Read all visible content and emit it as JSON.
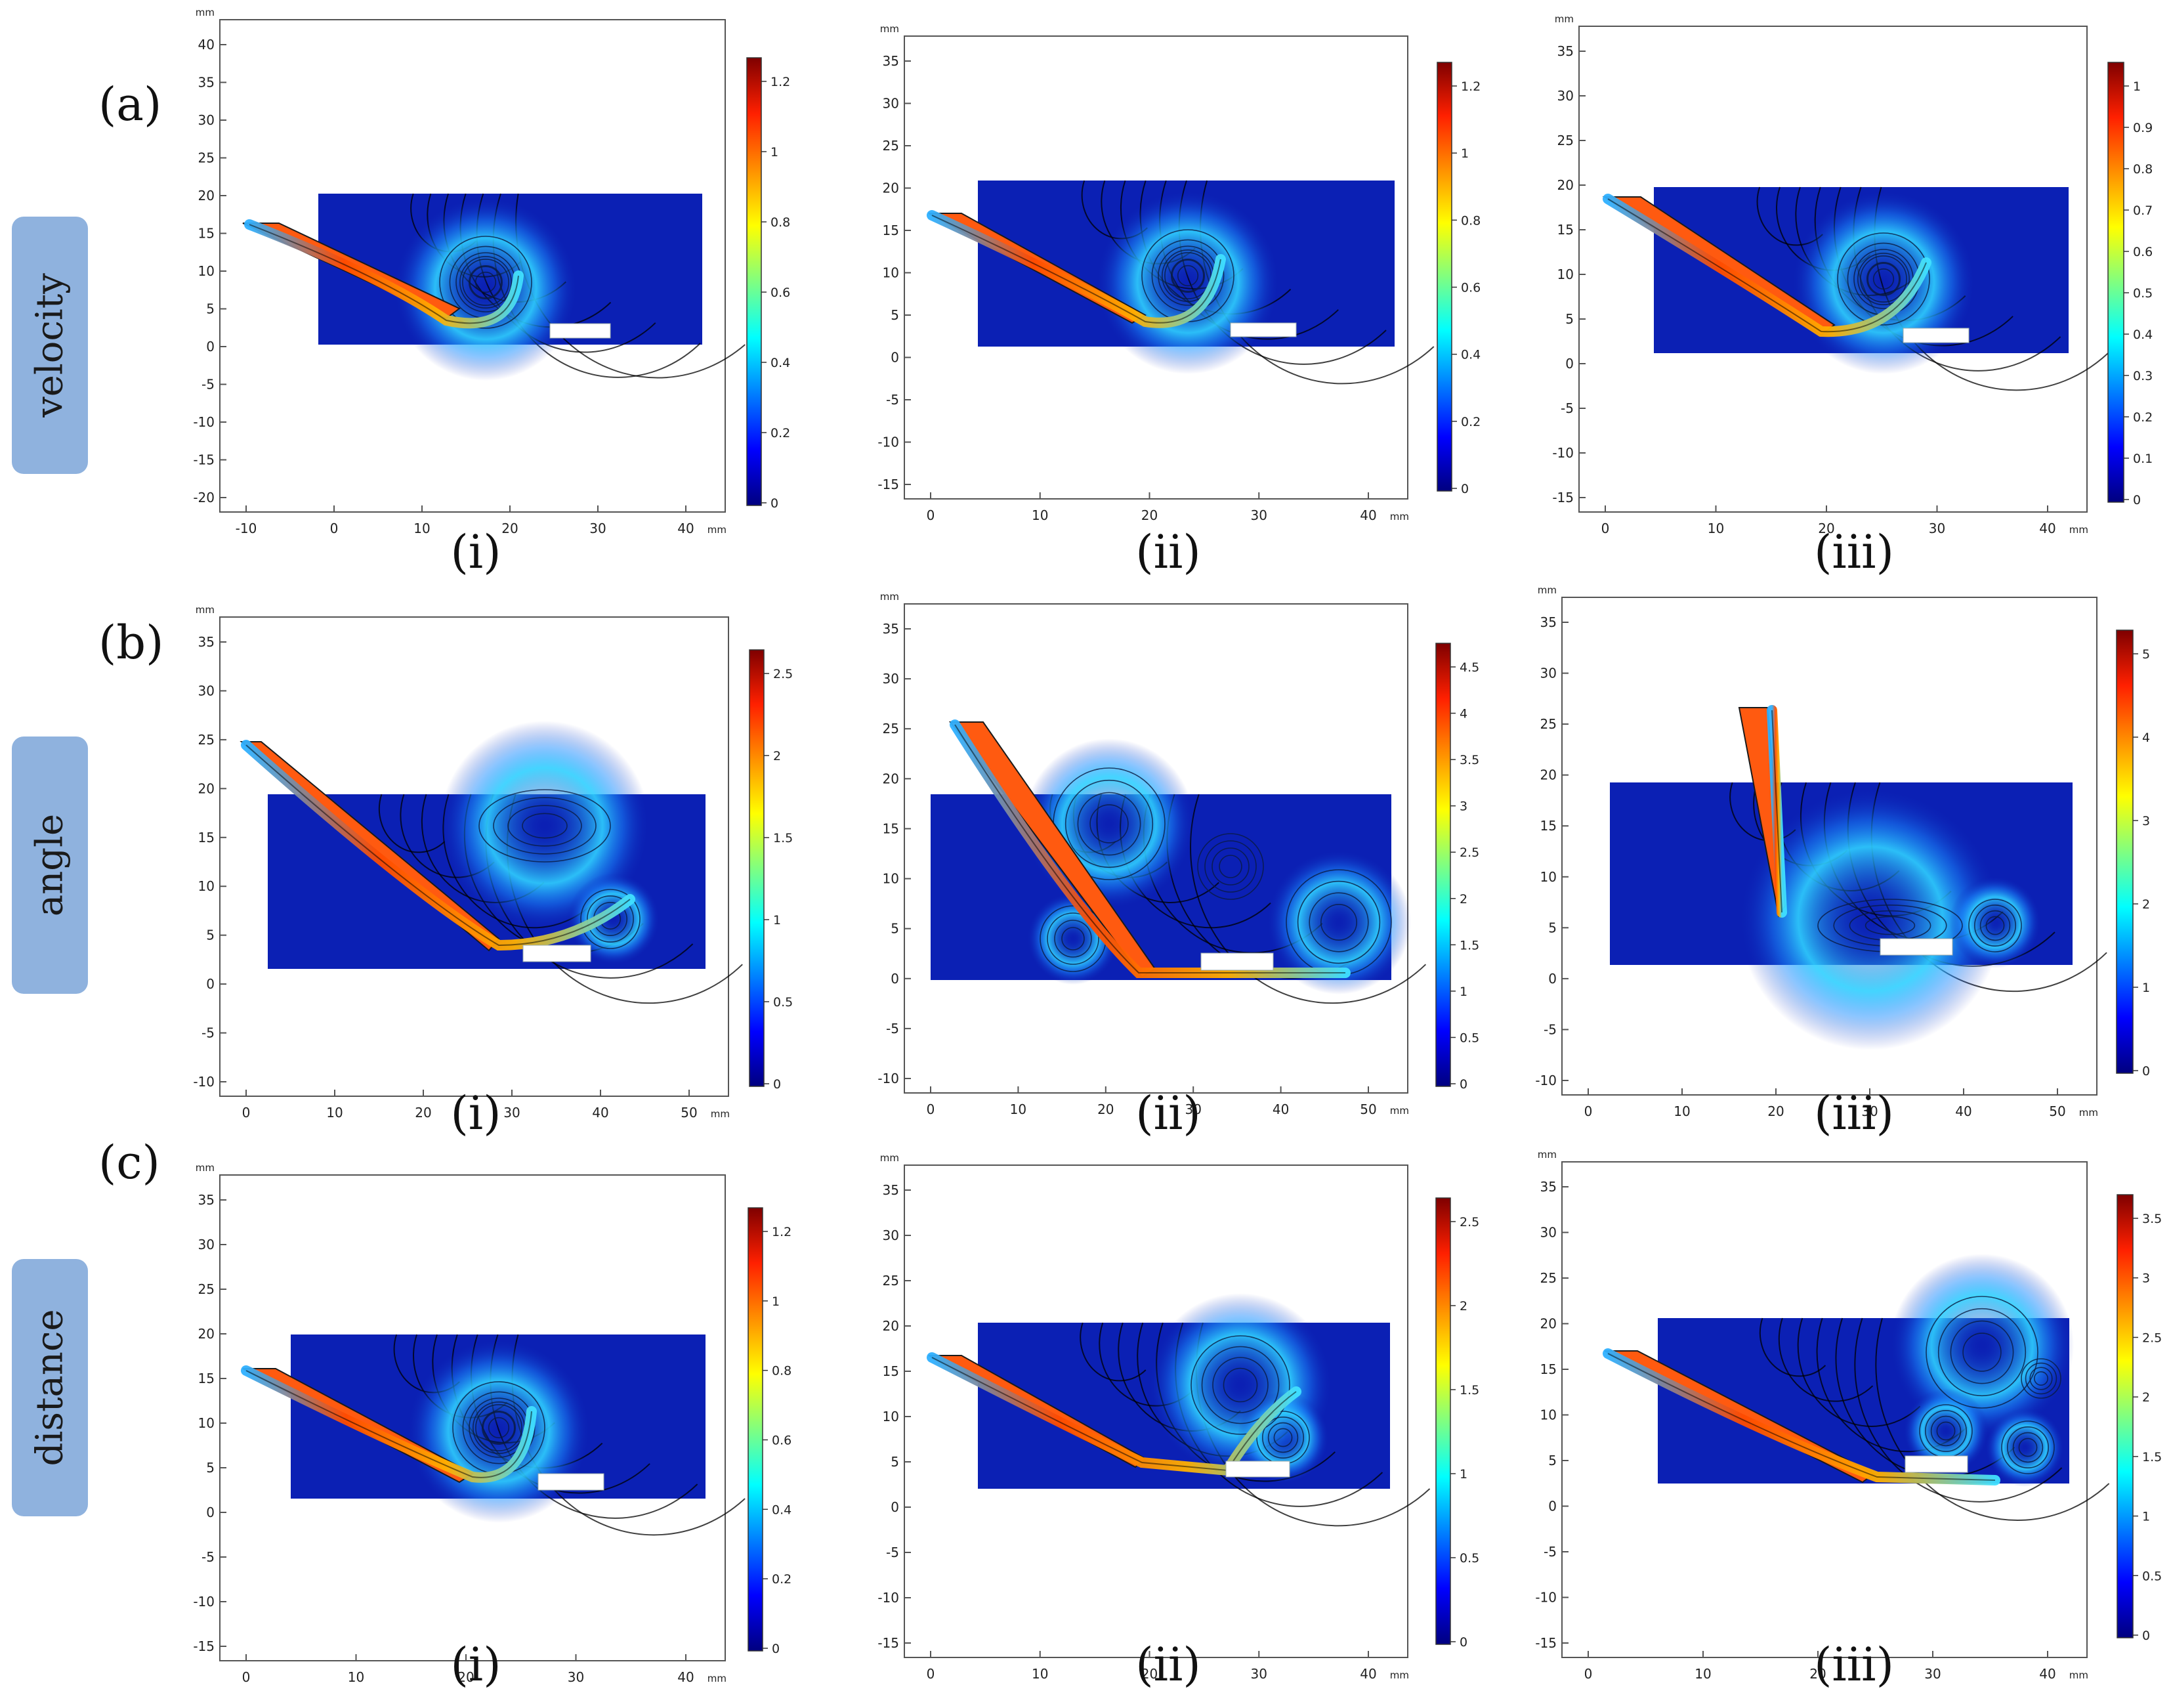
{
  "rows": [
    {
      "row_label": "(a)",
      "tag": "velocity"
    },
    {
      "row_label": "(b)",
      "tag": "angle"
    },
    {
      "row_label": "(c)",
      "tag": "distance"
    }
  ],
  "sub_labels": [
    "(i)",
    "(ii)",
    "(iii)"
  ],
  "unit": "mm",
  "panels": [
    {
      "id": "a-i",
      "x_ticks": [
        "-10",
        "0",
        "10",
        "20",
        "30",
        "40"
      ],
      "y_ticks": [
        "-20",
        "-15",
        "-10",
        "-5",
        "0",
        "5",
        "10",
        "15",
        "20",
        "25",
        "30",
        "35",
        "40"
      ],
      "cb_ticks": [
        "0",
        "0.2",
        "0.4",
        "0.6",
        "0.8",
        "1",
        "1.2"
      ]
    },
    {
      "id": "a-ii",
      "x_ticks": [
        "0",
        "10",
        "20",
        "30",
        "40"
      ],
      "y_ticks": [
        "-15",
        "-10",
        "-5",
        "0",
        "5",
        "10",
        "15",
        "20",
        "25",
        "30",
        "35"
      ],
      "cb_ticks": [
        "0",
        "0.2",
        "0.4",
        "0.6",
        "0.8",
        "1",
        "1.2"
      ]
    },
    {
      "id": "a-iii",
      "x_ticks": [
        "0",
        "10",
        "20",
        "30",
        "40"
      ],
      "y_ticks": [
        "-15",
        "-10",
        "-5",
        "0",
        "5",
        "10",
        "15",
        "20",
        "25",
        "30",
        "35"
      ],
      "cb_ticks": [
        "0",
        "0.1",
        "0.2",
        "0.3",
        "0.4",
        "0.5",
        "0.6",
        "0.7",
        "0.8",
        "0.9",
        "1"
      ]
    },
    {
      "id": "b-i",
      "x_ticks": [
        "0",
        "10",
        "20",
        "30",
        "40",
        "50"
      ],
      "y_ticks": [
        "-10",
        "-5",
        "0",
        "5",
        "10",
        "15",
        "20",
        "25",
        "30",
        "35"
      ],
      "cb_ticks": [
        "0",
        "0.5",
        "1",
        "1.5",
        "2",
        "2.5"
      ]
    },
    {
      "id": "b-ii",
      "x_ticks": [
        "0",
        "10",
        "20",
        "30",
        "40",
        "50"
      ],
      "y_ticks": [
        "-10",
        "-5",
        "0",
        "5",
        "10",
        "15",
        "20",
        "25",
        "30",
        "35"
      ],
      "cb_ticks": [
        "0",
        "0.5",
        "1",
        "1.5",
        "2",
        "2.5",
        "3",
        "3.5",
        "4",
        "4.5"
      ]
    },
    {
      "id": "b-iii",
      "x_ticks": [
        "0",
        "10",
        "20",
        "30",
        "40",
        "50"
      ],
      "y_ticks": [
        "-10",
        "-5",
        "0",
        "5",
        "10",
        "15",
        "20",
        "25",
        "30",
        "35"
      ],
      "cb_ticks": [
        "0",
        "1",
        "2",
        "3",
        "4",
        "5"
      ]
    },
    {
      "id": "c-i",
      "x_ticks": [
        "0",
        "10",
        "20",
        "30",
        "40"
      ],
      "y_ticks": [
        "-15",
        "-10",
        "-5",
        "0",
        "5",
        "10",
        "15",
        "20",
        "25",
        "30",
        "35"
      ],
      "cb_ticks": [
        "0",
        "0.2",
        "0.4",
        "0.6",
        "0.8",
        "1",
        "1.2"
      ]
    },
    {
      "id": "c-ii",
      "x_ticks": [
        "0",
        "10",
        "20",
        "30",
        "40"
      ],
      "y_ticks": [
        "-15",
        "-10",
        "-5",
        "0",
        "5",
        "10",
        "15",
        "20",
        "25",
        "30",
        "35"
      ],
      "cb_ticks": [
        "0",
        "0.5",
        "1",
        "1.5",
        "2",
        "2.5"
      ]
    },
    {
      "id": "c-iii",
      "x_ticks": [
        "0",
        "10",
        "20",
        "30",
        "40"
      ],
      "y_ticks": [
        "-15",
        "-10",
        "-5",
        "0",
        "5",
        "10",
        "15",
        "20",
        "25",
        "30",
        "35"
      ],
      "cb_ticks": [
        "0",
        "0.5",
        "1",
        "1.5",
        "2",
        "2.5",
        "3",
        "3.5"
      ]
    }
  ],
  "colors": {
    "domain_fill": "#0b20b4",
    "glow": "#2fd0ff",
    "jet_high": "#ff3a00",
    "streamline": "#000000"
  }
}
